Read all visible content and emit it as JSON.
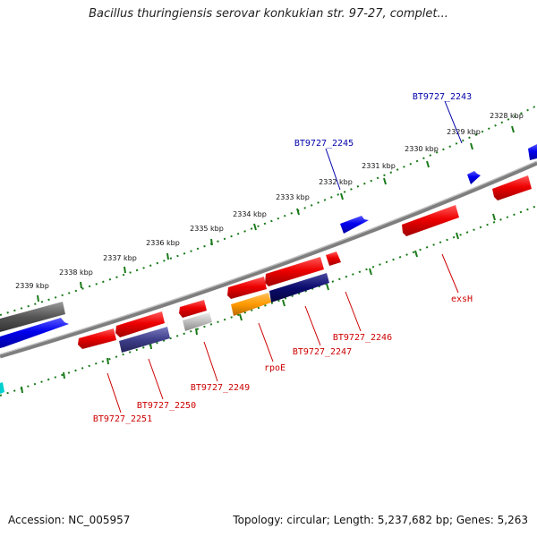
{
  "title": "Bacillus thuringiensis serovar konkukian str. 97-27, complet...",
  "footer": {
    "accession": "Accession: NC_005957",
    "summary": "Topology: circular; Length: 5,237,682 bp; Genes: 5,263"
  },
  "colors": {
    "forward_gene": "#0000ee",
    "reverse_gene": "#ee0000",
    "tick_dots": "#1a7a1a",
    "backbone": "#888888",
    "forward_label": "#0000aa",
    "reverse_label": "#cc0000"
  },
  "scale": {
    "unit": "kbp",
    "ticks": [
      "2328 kbp",
      "2329 kbp",
      "2330 kbp",
      "2331 kbp",
      "2332 kbp",
      "2333 kbp",
      "2334 kbp",
      "2335 kbp",
      "2336 kbp",
      "2337 kbp",
      "2338 kbp",
      "2339 kbp"
    ]
  },
  "gene_labels": [
    {
      "id": "bt9727-2243",
      "text": "BT9727_2243",
      "strand": "forward"
    },
    {
      "id": "bt9727-2245",
      "text": "BT9727_2245",
      "strand": "forward"
    },
    {
      "id": "exsh",
      "text": "exsH",
      "strand": "reverse"
    },
    {
      "id": "bt9727-2246",
      "text": "BT9727_2246",
      "strand": "reverse"
    },
    {
      "id": "bt9727-2247",
      "text": "BT9727_2247",
      "strand": "reverse"
    },
    {
      "id": "rpoe",
      "text": "rpoE",
      "strand": "reverse"
    },
    {
      "id": "bt9727-2249",
      "text": "BT9727_2249",
      "strand": "reverse"
    },
    {
      "id": "bt9727-2250",
      "text": "BT9727_2250",
      "strand": "reverse"
    },
    {
      "id": "bt9727-2251",
      "text": "BT9727_2251",
      "strand": "reverse"
    }
  ]
}
